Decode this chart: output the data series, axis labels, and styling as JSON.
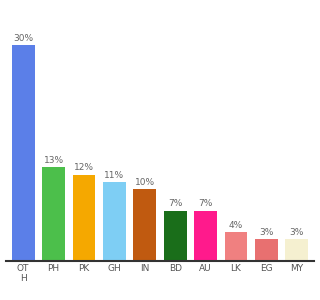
{
  "categories": [
    "OT\nH",
    "PH",
    "PK",
    "GH",
    "IN",
    "BD",
    "AU",
    "LK",
    "EG",
    "MY"
  ],
  "values": [
    30,
    13,
    12,
    11,
    10,
    7,
    7,
    4,
    3,
    3
  ],
  "bar_colors": [
    "#5b7fe8",
    "#4cbf4b",
    "#f5a800",
    "#7ecef4",
    "#c05a10",
    "#1a6e1a",
    "#ff1a8c",
    "#f08080",
    "#e87070",
    "#f5f0d0"
  ],
  "ylim": [
    0,
    35
  ],
  "bar_width": 0.75,
  "label_fontsize": 6.5,
  "tick_fontsize": 6.5,
  "background_color": "#ffffff"
}
